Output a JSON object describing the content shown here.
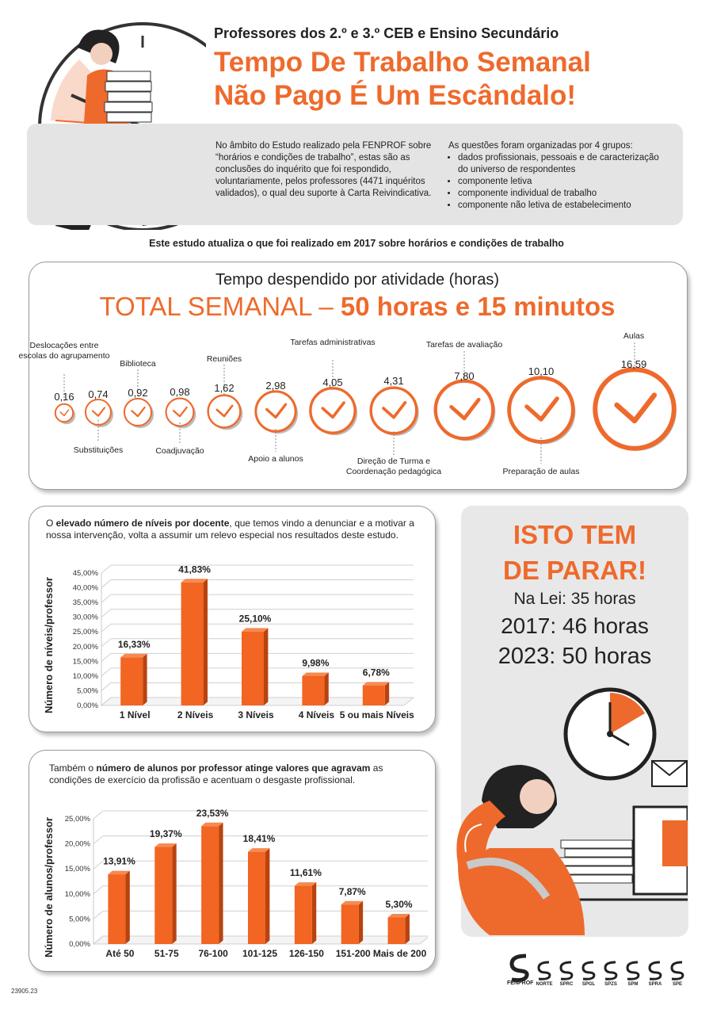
{
  "header": {
    "subtitle": "Professores dos 2.º e 3.º CEB e Ensino Secundário",
    "title_line1": "Tempo De Trabalho Semanal",
    "title_line2": "Não Pago É Um Escândalo!"
  },
  "intro": {
    "left_text": "No âmbito do Estudo realizado pela FENPROF sobre “horários e condições de trabalho”, estas são as conclusões do inquérito que foi respondido, voluntariamente, pelos professores (4471 inquéritos validados), o qual deu suporte à Carta Reivindicativa.",
    "right_title": "As questões foram organizadas por 4 grupos:",
    "groups": [
      "dados profissionais, pessoais e de caracterização do universo de respondentes",
      "componente letiva",
      "componente individual de trabalho",
      "componente não letiva de estabelecimento"
    ]
  },
  "update_note": "Este estudo atualiza o que foi realizado em 2017 sobre horários e condições de trabalho",
  "time_panel": {
    "title": "Tempo despendido por atividade (horas)",
    "total_prefix": "TOTAL SEMANAL – ",
    "total_value": "50 horas e 15 minutos",
    "activities": [
      {
        "label": "Deslocações entre escolas do agrupamento",
        "value": "0,16"
      },
      {
        "label": "Substituições",
        "value": "0,74"
      },
      {
        "label": "Biblioteca",
        "value": "0,92"
      },
      {
        "label": "Coadjuvação",
        "value": "0,98"
      },
      {
        "label": "Reuniões",
        "value": "1,62"
      },
      {
        "label": "Apoio a alunos",
        "value": "2,98"
      },
      {
        "label": "Tarefas administrativas",
        "value": "4,05"
      },
      {
        "label": "Direção de Turma e Coordenação pedagógica",
        "value": "4,31"
      },
      {
        "label": "Tarefas de avaliação",
        "value": "7,80"
      },
      {
        "label": "Preparação de aulas",
        "value": "10,10"
      },
      {
        "label": "Aulas",
        "value": "16,59"
      }
    ]
  },
  "levels_panel": {
    "caption_pre": "O ",
    "caption_bold": "elevado número de níveis por docente",
    "caption_post": ", que temos vindo a denunciar e a motivar a nossa intervenção, volta a assumir um relevo especial nos resultados deste estudo."
  },
  "students_panel": {
    "caption_pre": "Também o ",
    "caption_bold": "número de alunos por professor atinge valores que agravam",
    "caption_post": " as condições de exercício da profissão e acentuam o desgaste profissional."
  },
  "chart_data": [
    {
      "type": "bar",
      "ylabel": "Número de níveis/professor",
      "categories": [
        "1 Nível",
        "2 Níveis",
        "3 Níveis",
        "4 Níveis",
        "5 ou mais Níveis"
      ],
      "values": [
        16.33,
        41.83,
        25.1,
        9.98,
        6.78
      ],
      "value_labels": [
        "16,33%",
        "41,83%",
        "25,10%",
        "9,98%",
        "6,78%"
      ],
      "ylim": [
        0,
        45
      ],
      "yticks": [
        "0,00%",
        "5,00%",
        "10,00%",
        "15,00%",
        "20,00%",
        "25,00%",
        "30,00%",
        "35,00%",
        "40,00%",
        "45,00%"
      ],
      "color": "#f26522"
    },
    {
      "type": "bar",
      "ylabel": "Número de alunos/professor",
      "categories": [
        "Até 50",
        "51-75",
        "76-100",
        "101-125",
        "126-150",
        "151-200",
        "Mais de 200"
      ],
      "values": [
        13.91,
        19.37,
        23.53,
        18.41,
        11.61,
        7.87,
        5.3
      ],
      "value_labels": [
        "13,91%",
        "19,37%",
        "23,53%",
        "18,41%",
        "11,61%",
        "7,87%",
        "5,30%"
      ],
      "ylim": [
        0,
        25
      ],
      "yticks": [
        "0,00%",
        "5,00%",
        "10,00%",
        "15,00%",
        "20,00%",
        "25,00%"
      ],
      "color": "#f26522"
    }
  ],
  "isto": {
    "line1": "ISTO TEM",
    "line2": "DE PARAR!",
    "lei": "Na Lei: 35 horas",
    "y2017": "2017: 46 horas",
    "y2023": "2023: 50 horas"
  },
  "logos": [
    "FENPROF",
    "NORTE",
    "SPRC",
    "SPGL",
    "SPZS",
    "SPM",
    "SPRA",
    "SPE"
  ],
  "doc_code": "23905.23",
  "colors": {
    "accent": "#ee6a2c",
    "bar": "#f26522",
    "bar_side": "#b8430f",
    "panel_grey": "#e4e4e4"
  }
}
